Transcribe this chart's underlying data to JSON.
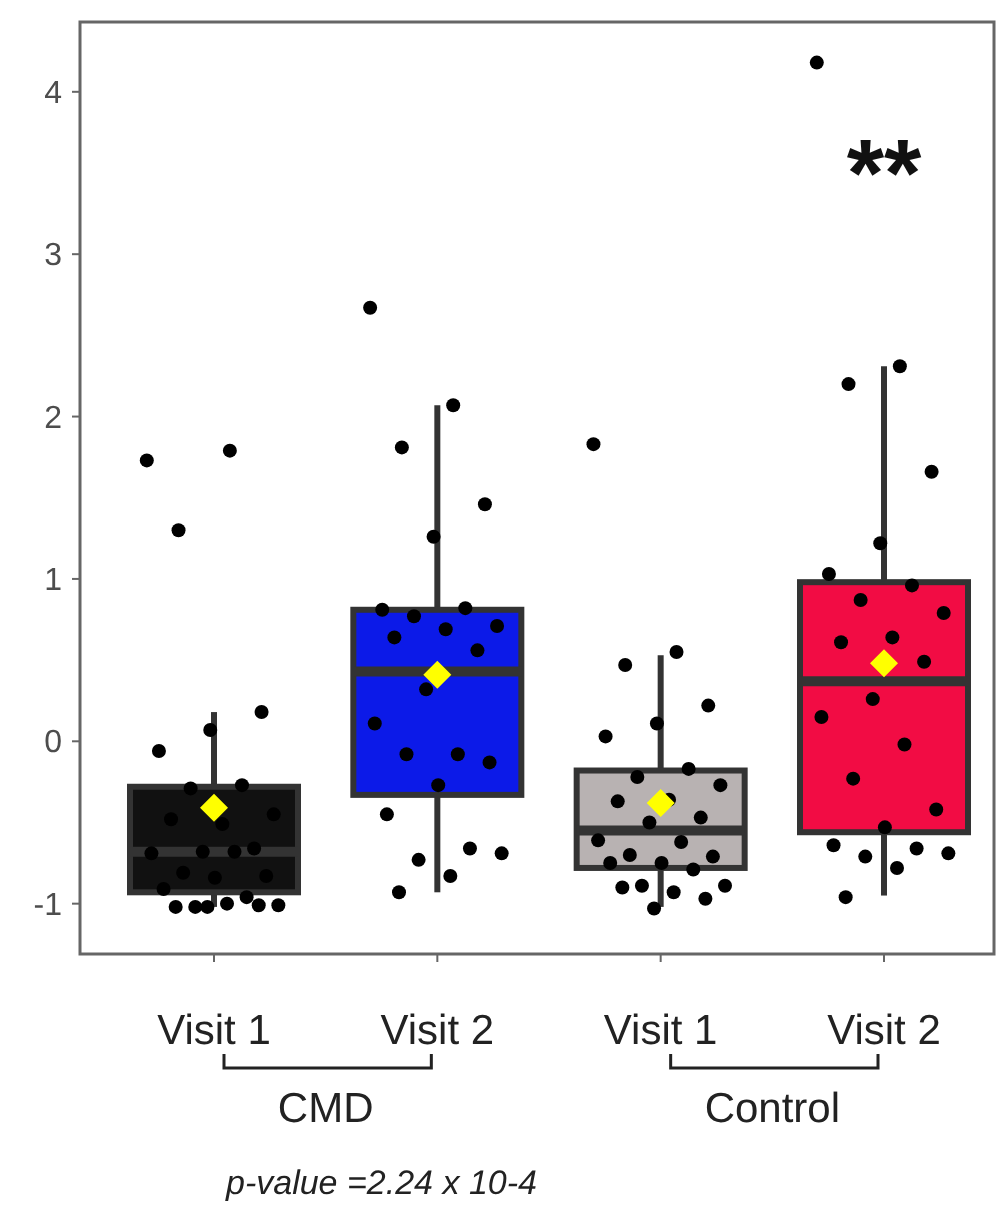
{
  "chart_data": {
    "type": "box",
    "categories": [
      "Visit 1",
      "Visit 2",
      "Visit 1",
      "Visit 2"
    ],
    "colors": [
      "#111111",
      "#0c1ae8",
      "#b8b2b2",
      "#f20c44"
    ],
    "boxes": [
      {
        "low": -1.02,
        "q1": -0.93,
        "median": -0.68,
        "q3": -0.28,
        "high": 0.18,
        "mean": -0.41,
        "outliers": [
          1.73,
          1.79,
          1.3,
          0.18,
          0.07,
          -0.06,
          -0.27,
          -0.29,
          -0.45,
          -0.51,
          -0.48,
          -0.66,
          -0.68,
          -0.69,
          -0.68,
          -0.81,
          -0.83,
          -0.84,
          -0.91,
          -0.96,
          -1.02,
          -1.01,
          -1.0,
          -1.02,
          -1.01,
          -1.02
        ]
      },
      {
        "low": -0.93,
        "q1": -0.33,
        "median": 0.43,
        "q3": 0.81,
        "high": 2.07,
        "mean": 0.41,
        "outliers": [
          2.67,
          2.07,
          1.81,
          1.46,
          1.26,
          0.81,
          0.82,
          0.77,
          0.71,
          0.69,
          0.64,
          0.56,
          0.32,
          0.11,
          -0.08,
          -0.08,
          -0.13,
          -0.27,
          -0.45,
          -0.66,
          -0.73,
          -0.69,
          -0.83,
          -0.93
        ]
      },
      {
        "low": -1.02,
        "q1": -0.78,
        "median": -0.55,
        "q3": -0.18,
        "high": 0.53,
        "mean": -0.38,
        "outliers": [
          1.83,
          0.55,
          0.47,
          0.22,
          0.11,
          0.03,
          -0.17,
          -0.22,
          -0.27,
          -0.36,
          -0.37,
          -0.47,
          -0.5,
          -0.61,
          -0.62,
          -0.7,
          -0.71,
          -0.75,
          -0.75,
          -0.79,
          -0.89,
          -0.89,
          -0.93,
          -0.9,
          -0.97,
          -1.03
        ]
      },
      {
        "low": -0.95,
        "q1": -0.56,
        "median": 0.37,
        "q3": 0.98,
        "high": 2.31,
        "mean": 0.48,
        "outliers": [
          4.18,
          2.31,
          2.2,
          1.66,
          1.22,
          1.03,
          0.96,
          0.87,
          0.79,
          0.64,
          0.61,
          0.49,
          0.26,
          0.15,
          -0.02,
          -0.23,
          -0.42,
          -0.53,
          -0.64,
          -0.66,
          -0.71,
          -0.69,
          -0.78,
          -0.96
        ]
      }
    ],
    "ylim": [
      -1.31,
      4.43
    ],
    "yticks": [
      -1,
      0,
      1,
      2,
      3,
      4
    ],
    "annotations": [
      "**",
      "CMD",
      "Control",
      "p-value =2.24 x 10-4"
    ]
  }
}
